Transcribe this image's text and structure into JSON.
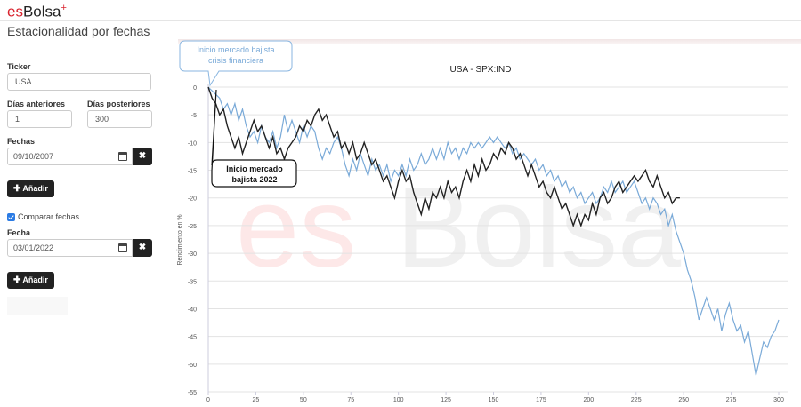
{
  "header": {
    "logo_es": "es",
    "logo_bolsa": "Bolsa",
    "logo_plus": "+",
    "page_title": "Estacionalidad por fechas"
  },
  "form": {
    "ticker_label": "Ticker",
    "ticker_value": "USA",
    "dias_anteriores_label": "Días anteriores",
    "dias_anteriores_value": "1",
    "dias_posteriores_label": "Días posteriores",
    "dias_posteriores_value": "300",
    "fechas_label": "Fechas",
    "fecha1_value": "09/10/2007",
    "remove_symbol": "✖",
    "add_button_label": "Añadir",
    "comparar_label": "Comparar fechas",
    "comparar_checked": true,
    "fecha_label": "Fecha",
    "fecha2_value": "03/01/2022",
    "add_button2_label": "Añadir"
  },
  "callouts": {
    "blue": [
      "Inicio mercado bajista",
      "crisis financiera"
    ],
    "black": [
      "Inicio mercado",
      "bajista 2022"
    ]
  },
  "watermark": {
    "es": "es",
    "bolsa": "Bolsa",
    "es_color": "#fde8e8",
    "bolsa_color": "#f0f0f0"
  },
  "chart_data": {
    "type": "line",
    "title": "USA - SPX:IND",
    "ylabel": "Rendimiento en %",
    "xlabel": "",
    "xlim": [
      0,
      300
    ],
    "ylim": [
      -55,
      0
    ],
    "xticks": [
      0,
      25,
      50,
      75,
      100,
      125,
      150,
      175,
      200,
      225,
      250,
      275,
      300
    ],
    "yticks": [
      0,
      -5,
      -10,
      -15,
      -20,
      -25,
      -30,
      -35,
      -40,
      -45,
      -50,
      -55
    ],
    "grid": true,
    "series": [
      {
        "color": "#7aaad8",
        "points": [
          [
            0,
            0
          ],
          [
            3,
            -1
          ],
          [
            6,
            -2
          ],
          [
            8,
            -4
          ],
          [
            10,
            -3
          ],
          [
            12,
            -5
          ],
          [
            14,
            -3
          ],
          [
            16,
            -6
          ],
          [
            18,
            -4
          ],
          [
            20,
            -7
          ],
          [
            22,
            -9
          ],
          [
            24,
            -8
          ],
          [
            26,
            -10
          ],
          [
            28,
            -7
          ],
          [
            30,
            -9
          ],
          [
            32,
            -10
          ],
          [
            34,
            -8
          ],
          [
            36,
            -11
          ],
          [
            38,
            -9
          ],
          [
            40,
            -5
          ],
          [
            42,
            -8
          ],
          [
            44,
            -6
          ],
          [
            46,
            -8
          ],
          [
            48,
            -10
          ],
          [
            50,
            -7
          ],
          [
            52,
            -9
          ],
          [
            54,
            -7
          ],
          [
            56,
            -8
          ],
          [
            58,
            -11
          ],
          [
            60,
            -13
          ],
          [
            62,
            -11
          ],
          [
            64,
            -12
          ],
          [
            66,
            -10
          ],
          [
            68,
            -9
          ],
          [
            70,
            -11
          ],
          [
            72,
            -14
          ],
          [
            74,
            -16
          ],
          [
            76,
            -13
          ],
          [
            78,
            -15
          ],
          [
            80,
            -12
          ],
          [
            82,
            -14
          ],
          [
            84,
            -16
          ],
          [
            86,
            -13
          ],
          [
            88,
            -15
          ],
          [
            90,
            -14
          ],
          [
            92,
            -16
          ],
          [
            94,
            -14
          ],
          [
            96,
            -17
          ],
          [
            98,
            -15
          ],
          [
            100,
            -16
          ],
          [
            102,
            -14
          ],
          [
            104,
            -16
          ],
          [
            106,
            -13
          ],
          [
            108,
            -15
          ],
          [
            110,
            -14
          ],
          [
            112,
            -12
          ],
          [
            114,
            -14
          ],
          [
            116,
            -13
          ],
          [
            118,
            -11
          ],
          [
            120,
            -13
          ],
          [
            122,
            -11
          ],
          [
            124,
            -13
          ],
          [
            126,
            -10
          ],
          [
            128,
            -12
          ],
          [
            130,
            -11
          ],
          [
            132,
            -13
          ],
          [
            134,
            -11
          ],
          [
            136,
            -12
          ],
          [
            138,
            -10
          ],
          [
            140,
            -11
          ],
          [
            142,
            -10
          ],
          [
            144,
            -11
          ],
          [
            146,
            -10
          ],
          [
            148,
            -9
          ],
          [
            150,
            -10
          ],
          [
            152,
            -9
          ],
          [
            154,
            -10
          ],
          [
            156,
            -11
          ],
          [
            158,
            -10
          ],
          [
            160,
            -12
          ],
          [
            162,
            -11
          ],
          [
            164,
            -13
          ],
          [
            166,
            -12
          ],
          [
            168,
            -13
          ],
          [
            170,
            -14
          ],
          [
            172,
            -13
          ],
          [
            174,
            -15
          ],
          [
            176,
            -14
          ],
          [
            178,
            -16
          ],
          [
            180,
            -15
          ],
          [
            182,
            -17
          ],
          [
            184,
            -16
          ],
          [
            186,
            -18
          ],
          [
            188,
            -17
          ],
          [
            190,
            -19
          ],
          [
            192,
            -18
          ],
          [
            194,
            -20
          ],
          [
            196,
            -19
          ],
          [
            198,
            -21
          ],
          [
            200,
            -20
          ],
          [
            202,
            -19
          ],
          [
            204,
            -21
          ],
          [
            206,
            -20
          ],
          [
            208,
            -18
          ],
          [
            210,
            -19
          ],
          [
            212,
            -17
          ],
          [
            214,
            -19
          ],
          [
            216,
            -18
          ],
          [
            218,
            -17
          ],
          [
            220,
            -19
          ],
          [
            222,
            -18
          ],
          [
            224,
            -17
          ],
          [
            226,
            -19
          ],
          [
            228,
            -21
          ],
          [
            230,
            -20
          ],
          [
            232,
            -22
          ],
          [
            234,
            -20
          ],
          [
            236,
            -21
          ],
          [
            238,
            -23
          ],
          [
            240,
            -22
          ],
          [
            242,
            -25
          ],
          [
            244,
            -23
          ],
          [
            246,
            -26
          ],
          [
            248,
            -28
          ],
          [
            250,
            -30
          ],
          [
            252,
            -33
          ],
          [
            254,
            -35
          ],
          [
            256,
            -38
          ],
          [
            258,
            -42
          ],
          [
            260,
            -40
          ],
          [
            262,
            -38
          ],
          [
            264,
            -40
          ],
          [
            266,
            -42
          ],
          [
            268,
            -40
          ],
          [
            270,
            -44
          ],
          [
            272,
            -41
          ],
          [
            274,
            -39
          ],
          [
            276,
            -42
          ],
          [
            278,
            -44
          ],
          [
            280,
            -43
          ],
          [
            282,
            -46
          ],
          [
            284,
            -44
          ],
          [
            286,
            -48
          ],
          [
            288,
            -52
          ],
          [
            290,
            -49
          ],
          [
            292,
            -46
          ],
          [
            294,
            -47
          ],
          [
            296,
            -45
          ],
          [
            298,
            -44
          ],
          [
            300,
            -42
          ]
        ]
      },
      {
        "color": "#222222",
        "points": [
          [
            0,
            0
          ],
          [
            2,
            -2
          ],
          [
            4,
            -3
          ],
          [
            6,
            -5
          ],
          [
            8,
            -4
          ],
          [
            10,
            -7
          ],
          [
            12,
            -9
          ],
          [
            14,
            -11
          ],
          [
            16,
            -9
          ],
          [
            18,
            -12
          ],
          [
            20,
            -10
          ],
          [
            22,
            -8
          ],
          [
            24,
            -6
          ],
          [
            26,
            -8
          ],
          [
            28,
            -7
          ],
          [
            30,
            -9
          ],
          [
            32,
            -11
          ],
          [
            34,
            -9
          ],
          [
            36,
            -12
          ],
          [
            38,
            -11
          ],
          [
            40,
            -13
          ],
          [
            42,
            -11
          ],
          [
            44,
            -10
          ],
          [
            46,
            -9
          ],
          [
            48,
            -7
          ],
          [
            50,
            -8
          ],
          [
            52,
            -6
          ],
          [
            54,
            -7
          ],
          [
            56,
            -5
          ],
          [
            58,
            -4
          ],
          [
            60,
            -6
          ],
          [
            62,
            -5
          ],
          [
            64,
            -7
          ],
          [
            66,
            -9
          ],
          [
            68,
            -8
          ],
          [
            70,
            -11
          ],
          [
            72,
            -10
          ],
          [
            74,
            -12
          ],
          [
            76,
            -10
          ],
          [
            78,
            -13
          ],
          [
            80,
            -12
          ],
          [
            82,
            -10
          ],
          [
            84,
            -12
          ],
          [
            86,
            -14
          ],
          [
            88,
            -13
          ],
          [
            90,
            -15
          ],
          [
            92,
            -17
          ],
          [
            94,
            -16
          ],
          [
            96,
            -18
          ],
          [
            98,
            -20
          ],
          [
            100,
            -17
          ],
          [
            102,
            -15
          ],
          [
            104,
            -17
          ],
          [
            106,
            -16
          ],
          [
            108,
            -19
          ],
          [
            110,
            -21
          ],
          [
            112,
            -23
          ],
          [
            114,
            -20
          ],
          [
            116,
            -22
          ],
          [
            118,
            -19
          ],
          [
            120,
            -20
          ],
          [
            122,
            -18
          ],
          [
            124,
            -20
          ],
          [
            126,
            -17
          ],
          [
            128,
            -19
          ],
          [
            130,
            -18
          ],
          [
            132,
            -20
          ],
          [
            134,
            -17
          ],
          [
            136,
            -15
          ],
          [
            138,
            -17
          ],
          [
            140,
            -14
          ],
          [
            142,
            -16
          ],
          [
            144,
            -13
          ],
          [
            146,
            -15
          ],
          [
            148,
            -14
          ],
          [
            150,
            -12
          ],
          [
            152,
            -13
          ],
          [
            154,
            -11
          ],
          [
            156,
            -12
          ],
          [
            158,
            -10
          ],
          [
            160,
            -11
          ],
          [
            162,
            -13
          ],
          [
            164,
            -12
          ],
          [
            166,
            -14
          ],
          [
            168,
            -16
          ],
          [
            170,
            -14
          ],
          [
            172,
            -16
          ],
          [
            174,
            -18
          ],
          [
            176,
            -17
          ],
          [
            178,
            -19
          ],
          [
            180,
            -20
          ],
          [
            182,
            -18
          ],
          [
            184,
            -20
          ],
          [
            186,
            -22
          ],
          [
            188,
            -21
          ],
          [
            190,
            -23
          ],
          [
            192,
            -25
          ],
          [
            194,
            -23
          ],
          [
            196,
            -25
          ],
          [
            198,
            -23
          ],
          [
            200,
            -24
          ],
          [
            202,
            -21
          ],
          [
            204,
            -23
          ],
          [
            206,
            -20
          ],
          [
            208,
            -19
          ],
          [
            210,
            -21
          ],
          [
            212,
            -20
          ],
          [
            214,
            -18
          ],
          [
            216,
            -17
          ],
          [
            218,
            -19
          ],
          [
            220,
            -18
          ],
          [
            222,
            -17
          ],
          [
            224,
            -16
          ],
          [
            226,
            -17
          ],
          [
            228,
            -16
          ],
          [
            230,
            -15
          ],
          [
            232,
            -17
          ],
          [
            234,
            -18
          ],
          [
            236,
            -16
          ],
          [
            238,
            -18
          ],
          [
            240,
            -20
          ],
          [
            242,
            -19
          ],
          [
            244,
            -21
          ],
          [
            246,
            -20
          ],
          [
            248,
            -20
          ]
        ]
      }
    ]
  }
}
